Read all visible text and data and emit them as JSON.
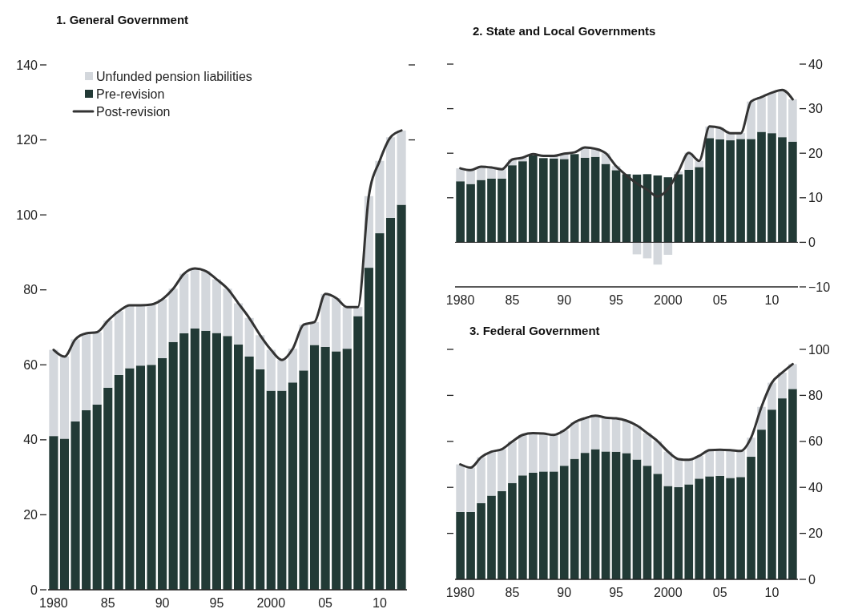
{
  "chart_data": [
    {
      "type": "bar",
      "title": "1. General Government",
      "stacked": true,
      "legend": "top left",
      "categories": [
        "1980",
        null,
        null,
        null,
        null,
        "85",
        null,
        null,
        null,
        null,
        "90",
        null,
        null,
        null,
        null,
        "95",
        null,
        null,
        null,
        null,
        "2000",
        null,
        null,
        null,
        null,
        "05",
        null,
        null,
        null,
        null,
        "10",
        null,
        null
      ],
      "ylim": [
        0,
        140
      ],
      "yticks": [
        0,
        20,
        40,
        60,
        80,
        100,
        120,
        140
      ],
      "series": [
        {
          "name": "Pre-revision",
          "color": "#223a36",
          "values": [
            41,
            40.3,
            44.9,
            47.9,
            49.4,
            53.9,
            57.3,
            59.1,
            59.8,
            60,
            61.8,
            66.1,
            68.4,
            69.7,
            69.1,
            68.5,
            67.7,
            65.4,
            62.2,
            58.8,
            53.1,
            53.1,
            55.3,
            58.5,
            65.3,
            64.8,
            63.6,
            64.3,
            73,
            85.9,
            95.1,
            99.2,
            102.7
          ]
        },
        {
          "name": "Unfunded pension liabilities",
          "color": "#d3d7dc",
          "values": [
            23,
            21.9,
            21.9,
            20.5,
            19.3,
            17.9,
            17,
            16.8,
            16.1,
            16.1,
            15.7,
            14.2,
            15.9,
            16,
            15.9,
            14.3,
            12.6,
            11,
            10.3,
            9.1,
            10.9,
            8.2,
            9,
            12.2,
            6.1,
            14.1,
            14.2,
            11.1,
            2.4,
            19.1,
            19.3,
            21.5,
            19.8
          ]
        },
        {
          "name": "Post-revision",
          "type": "line",
          "color": "#333333",
          "values": [
            64,
            62.2,
            66.8,
            68.4,
            68.7,
            71.8,
            74.3,
            75.9,
            75.9,
            76.1,
            77.5,
            80.3,
            84.3,
            85.7,
            85,
            82.8,
            80.3,
            76.4,
            72.5,
            67.9,
            64,
            61.3,
            64.3,
            70.7,
            71.4,
            78.9,
            77.8,
            75.4,
            75.4,
            105,
            114.4,
            120.7,
            122.5
          ]
        }
      ]
    },
    {
      "type": "bar",
      "title": "2. State and Local Governments",
      "stacked": true,
      "categories": [
        "1980",
        null,
        null,
        null,
        null,
        "85",
        null,
        null,
        null,
        null,
        "90",
        null,
        null,
        null,
        null,
        "95",
        null,
        null,
        null,
        null,
        "2000",
        null,
        null,
        null,
        null,
        "05",
        null,
        null,
        null,
        null,
        "10",
        null,
        null
      ],
      "y2lim": [
        -10,
        40
      ],
      "y2ticks": [
        {
          "value": -10,
          "label": "−10"
        },
        0,
        10,
        20,
        30,
        40
      ],
      "series": [
        {
          "axis": "y2",
          "color": "#223a36",
          "values": [
            13.7,
            13.1,
            14,
            14.3,
            14.3,
            17.3,
            18.2,
            19.5,
            18.9,
            18.8,
            18.7,
            19.8,
            19,
            19.2,
            17.6,
            16.2,
            15.3,
            15.2,
            15.3,
            15,
            14.6,
            15.3,
            16.3,
            16.9,
            23.4,
            23.1,
            22.9,
            23.2,
            23.2,
            24.8,
            24.5,
            23.6,
            22.6
          ]
        },
        {
          "axis": "y2",
          "color": "#d3d7dc",
          "values": [
            2.9,
            3.1,
            3,
            2.5,
            2.1,
            1.3,
            0.8,
            null,
            null,
            0.6,
            1.2,
            null,
            2.3,
            1.8,
            2.4,
            0.9,
            null,
            -2.7,
            -3.6,
            -5,
            -2.8,
            0.6,
            3.8,
            1.4,
            2.6,
            2.6,
            1.6,
            1.3,
            8.4,
            7.8,
            9.1,
            10.6,
            9.5
          ]
        },
        {
          "type": "line",
          "axis": "y2",
          "color": "#333333",
          "values": [
            16.6,
            16.2,
            17,
            16.8,
            16.4,
            18.6,
            19,
            19.8,
            19.4,
            19.4,
            19.9,
            20.2,
            21.3,
            21,
            20,
            17.1,
            15,
            13.2,
            11.8,
            10.3,
            12,
            15.9,
            20.1,
            18.3,
            26,
            25.7,
            24.5,
            24.5,
            31.6,
            32.6,
            33.6,
            34.2,
            32.1
          ]
        }
      ]
    },
    {
      "type": "bar",
      "title": "3. Federal Government",
      "stacked": true,
      "categories": [
        "1980",
        null,
        null,
        null,
        null,
        "85",
        null,
        null,
        null,
        null,
        "90",
        null,
        null,
        null,
        null,
        "95",
        null,
        null,
        null,
        null,
        "2000",
        null,
        null,
        null,
        null,
        "05",
        null,
        null,
        null,
        null,
        "10",
        null,
        null
      ],
      "y2lim": [
        0,
        100
      ],
      "y2ticks": [
        0,
        20,
        40,
        60,
        80,
        100
      ],
      "series": [
        {
          "axis": "y2",
          "color": "#223a36",
          "values": [
            29.3,
            29.3,
            33.1,
            36.4,
            38.4,
            41.9,
            45.2,
            46.4,
            46.9,
            46.9,
            49.4,
            52.4,
            55,
            56.6,
            55.6,
            55.5,
            54.9,
            52.1,
            49.4,
            45.9,
            40.6,
            40.1,
            41.3,
            43.8,
            44.8,
            45,
            44.1,
            44.5,
            53.3,
            65.1,
            73.8,
            78.7,
            82.8
          ]
        },
        {
          "axis": "y2",
          "color": "#d3d7dc",
          "values": [
            20.7,
            19.3,
            20,
            19.1,
            18.2,
            18,
            17.6,
            17.2,
            16.5,
            15.9,
            15.4,
            15.9,
            15.1,
            14.6,
            14.7,
            14.5,
            14.1,
            14.8,
            14.2,
            14.2,
            14.9,
            12.2,
            10.7,
            9.9,
            11.4,
            11.4,
            12.1,
            11.3,
            8.3,
            9.9,
            11.7,
            11.2,
            10.8
          ]
        },
        {
          "type": "line",
          "axis": "y2",
          "color": "#333333",
          "values": [
            50,
            48.6,
            53.1,
            55.5,
            56.6,
            59.9,
            62.8,
            63.6,
            63.4,
            62.8,
            64.8,
            68.3,
            70.1,
            71.2,
            70.3,
            70,
            69,
            66.9,
            63.6,
            60.1,
            55.5,
            52.3,
            52,
            53.7,
            56.2,
            56.4,
            56.2,
            55.8,
            61.6,
            75,
            85.5,
            89.9,
            93.6
          ]
        }
      ]
    }
  ]
}
